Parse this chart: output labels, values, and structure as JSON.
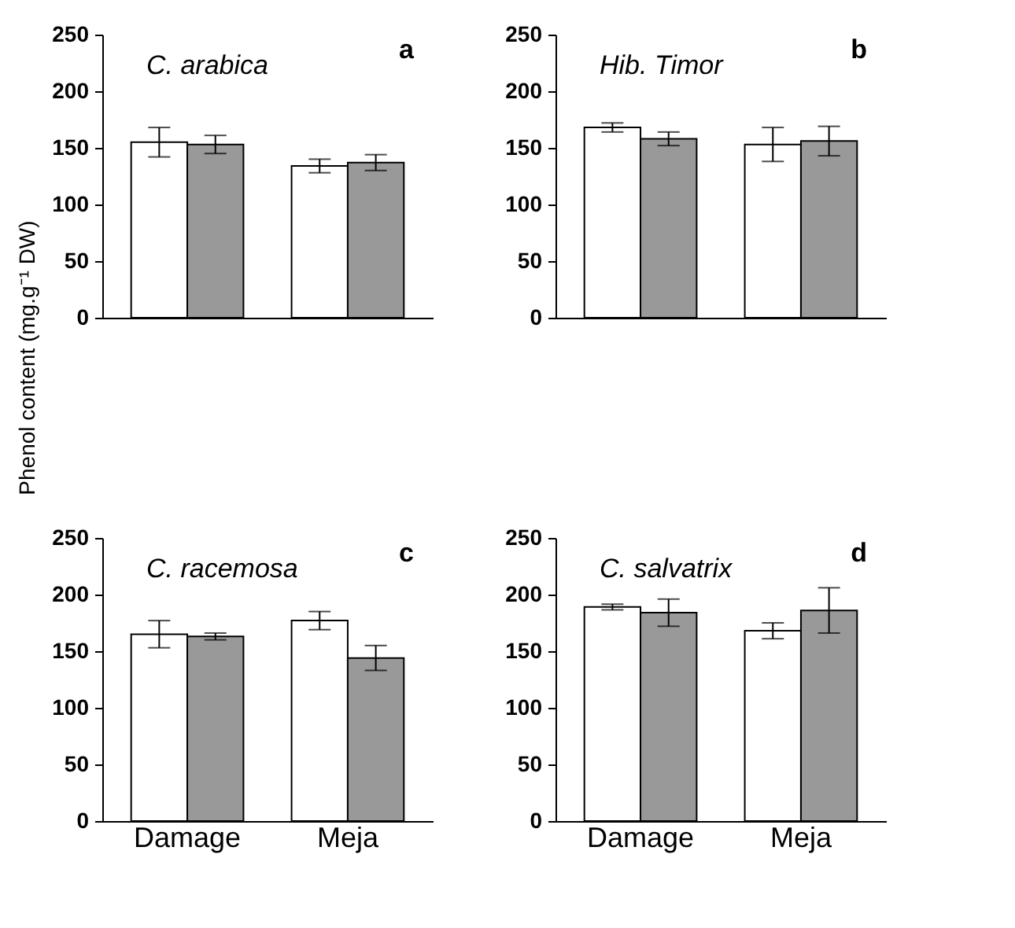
{
  "chart_data": [
    {
      "type": "bar",
      "title": "C. arabica",
      "ylabel": "Phenol content (mg.g⁻¹ DW)",
      "annotations": [
        "a"
      ],
      "categories": [
        null,
        null
      ],
      "ylim": [
        0,
        250
      ],
      "yticks": [
        0,
        50,
        100,
        150,
        200,
        250
      ],
      "tick_labels": "y",
      "grid": false,
      "legend": false,
      "series": [
        {
          "color": "#ffffff",
          "values": [
            155,
            134
          ],
          "errors": [
            13,
            6
          ]
        },
        {
          "color": "#999999",
          "values": [
            153,
            137
          ],
          "errors": [
            8,
            7
          ]
        }
      ]
    },
    {
      "type": "bar",
      "title": "Hib. Timor",
      "annotations": [
        "b"
      ],
      "categories": [
        null,
        null
      ],
      "ylim": [
        0,
        250
      ],
      "yticks": [
        0,
        50,
        100,
        150,
        200,
        250
      ],
      "tick_labels": "y",
      "grid": false,
      "legend": false,
      "series": [
        {
          "color": "#ffffff",
          "values": [
            168,
            153
          ],
          "errors": [
            4,
            15
          ]
        },
        {
          "color": "#999999",
          "values": [
            158,
            156
          ],
          "errors": [
            6,
            13
          ]
        }
      ]
    },
    {
      "type": "bar",
      "title": "C. racemosa",
      "annotations": [
        "c"
      ],
      "categories": [
        "Damage",
        "Meja"
      ],
      "ylim": [
        0,
        250
      ],
      "yticks": [
        0,
        50,
        100,
        150,
        200,
        250
      ],
      "grid": false,
      "legend": false,
      "series": [
        {
          "color": "#ffffff",
          "values": [
            165,
            177
          ],
          "errors": [
            12,
            8
          ]
        },
        {
          "color": "#999999",
          "values": [
            163,
            144
          ],
          "errors": [
            3,
            11
          ]
        }
      ]
    },
    {
      "type": "bar",
      "title": "C. salvatrix",
      "annotations": [
        "d"
      ],
      "categories": [
        "Damage",
        "Meja"
      ],
      "ylim": [
        0,
        250
      ],
      "yticks": [
        0,
        50,
        100,
        150,
        200,
        250
      ],
      "grid": false,
      "legend": false,
      "series": [
        {
          "color": "#ffffff",
          "values": [
            189,
            168
          ],
          "errors": [
            2.5,
            7
          ]
        },
        {
          "color": "#999999",
          "values": [
            184,
            186
          ],
          "errors": [
            12,
            20
          ]
        }
      ]
    }
  ]
}
